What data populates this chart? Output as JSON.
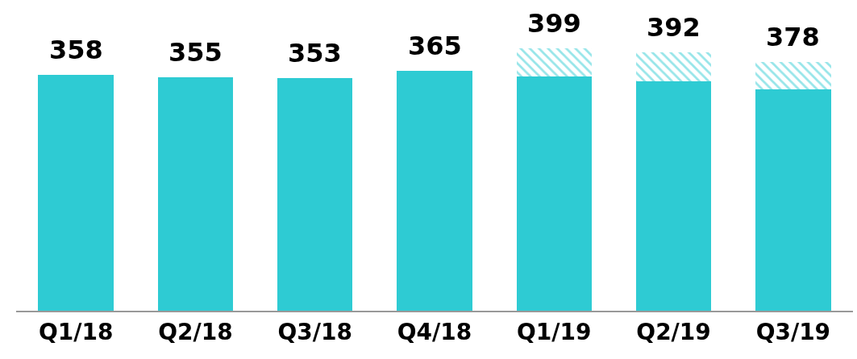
{
  "chart_data": {
    "type": "bar",
    "stacked": true,
    "categories": [
      "Q1/18",
      "Q2/18",
      "Q3/18",
      "Q4/18",
      "Q1/19",
      "Q2/19",
      "Q3/19"
    ],
    "series": [
      {
        "color": "#2ecbd3",
        "values": [
          358,
          355,
          353,
          365,
          356,
          349,
          336
        ],
        "value_labels": [
          "358",
          "355",
          "353",
          "365",
          null,
          null,
          null
        ]
      },
      {
        "color": "#2ecbd3",
        "values": [
          null,
          null,
          null,
          null,
          43,
          43,
          42
        ]
      }
    ],
    "totals": [
      null,
      null,
      null,
      null,
      "399",
      "392",
      "378"
    ],
    "ylim": [
      0,
      472
    ],
    "tick_labels": "x"
  }
}
